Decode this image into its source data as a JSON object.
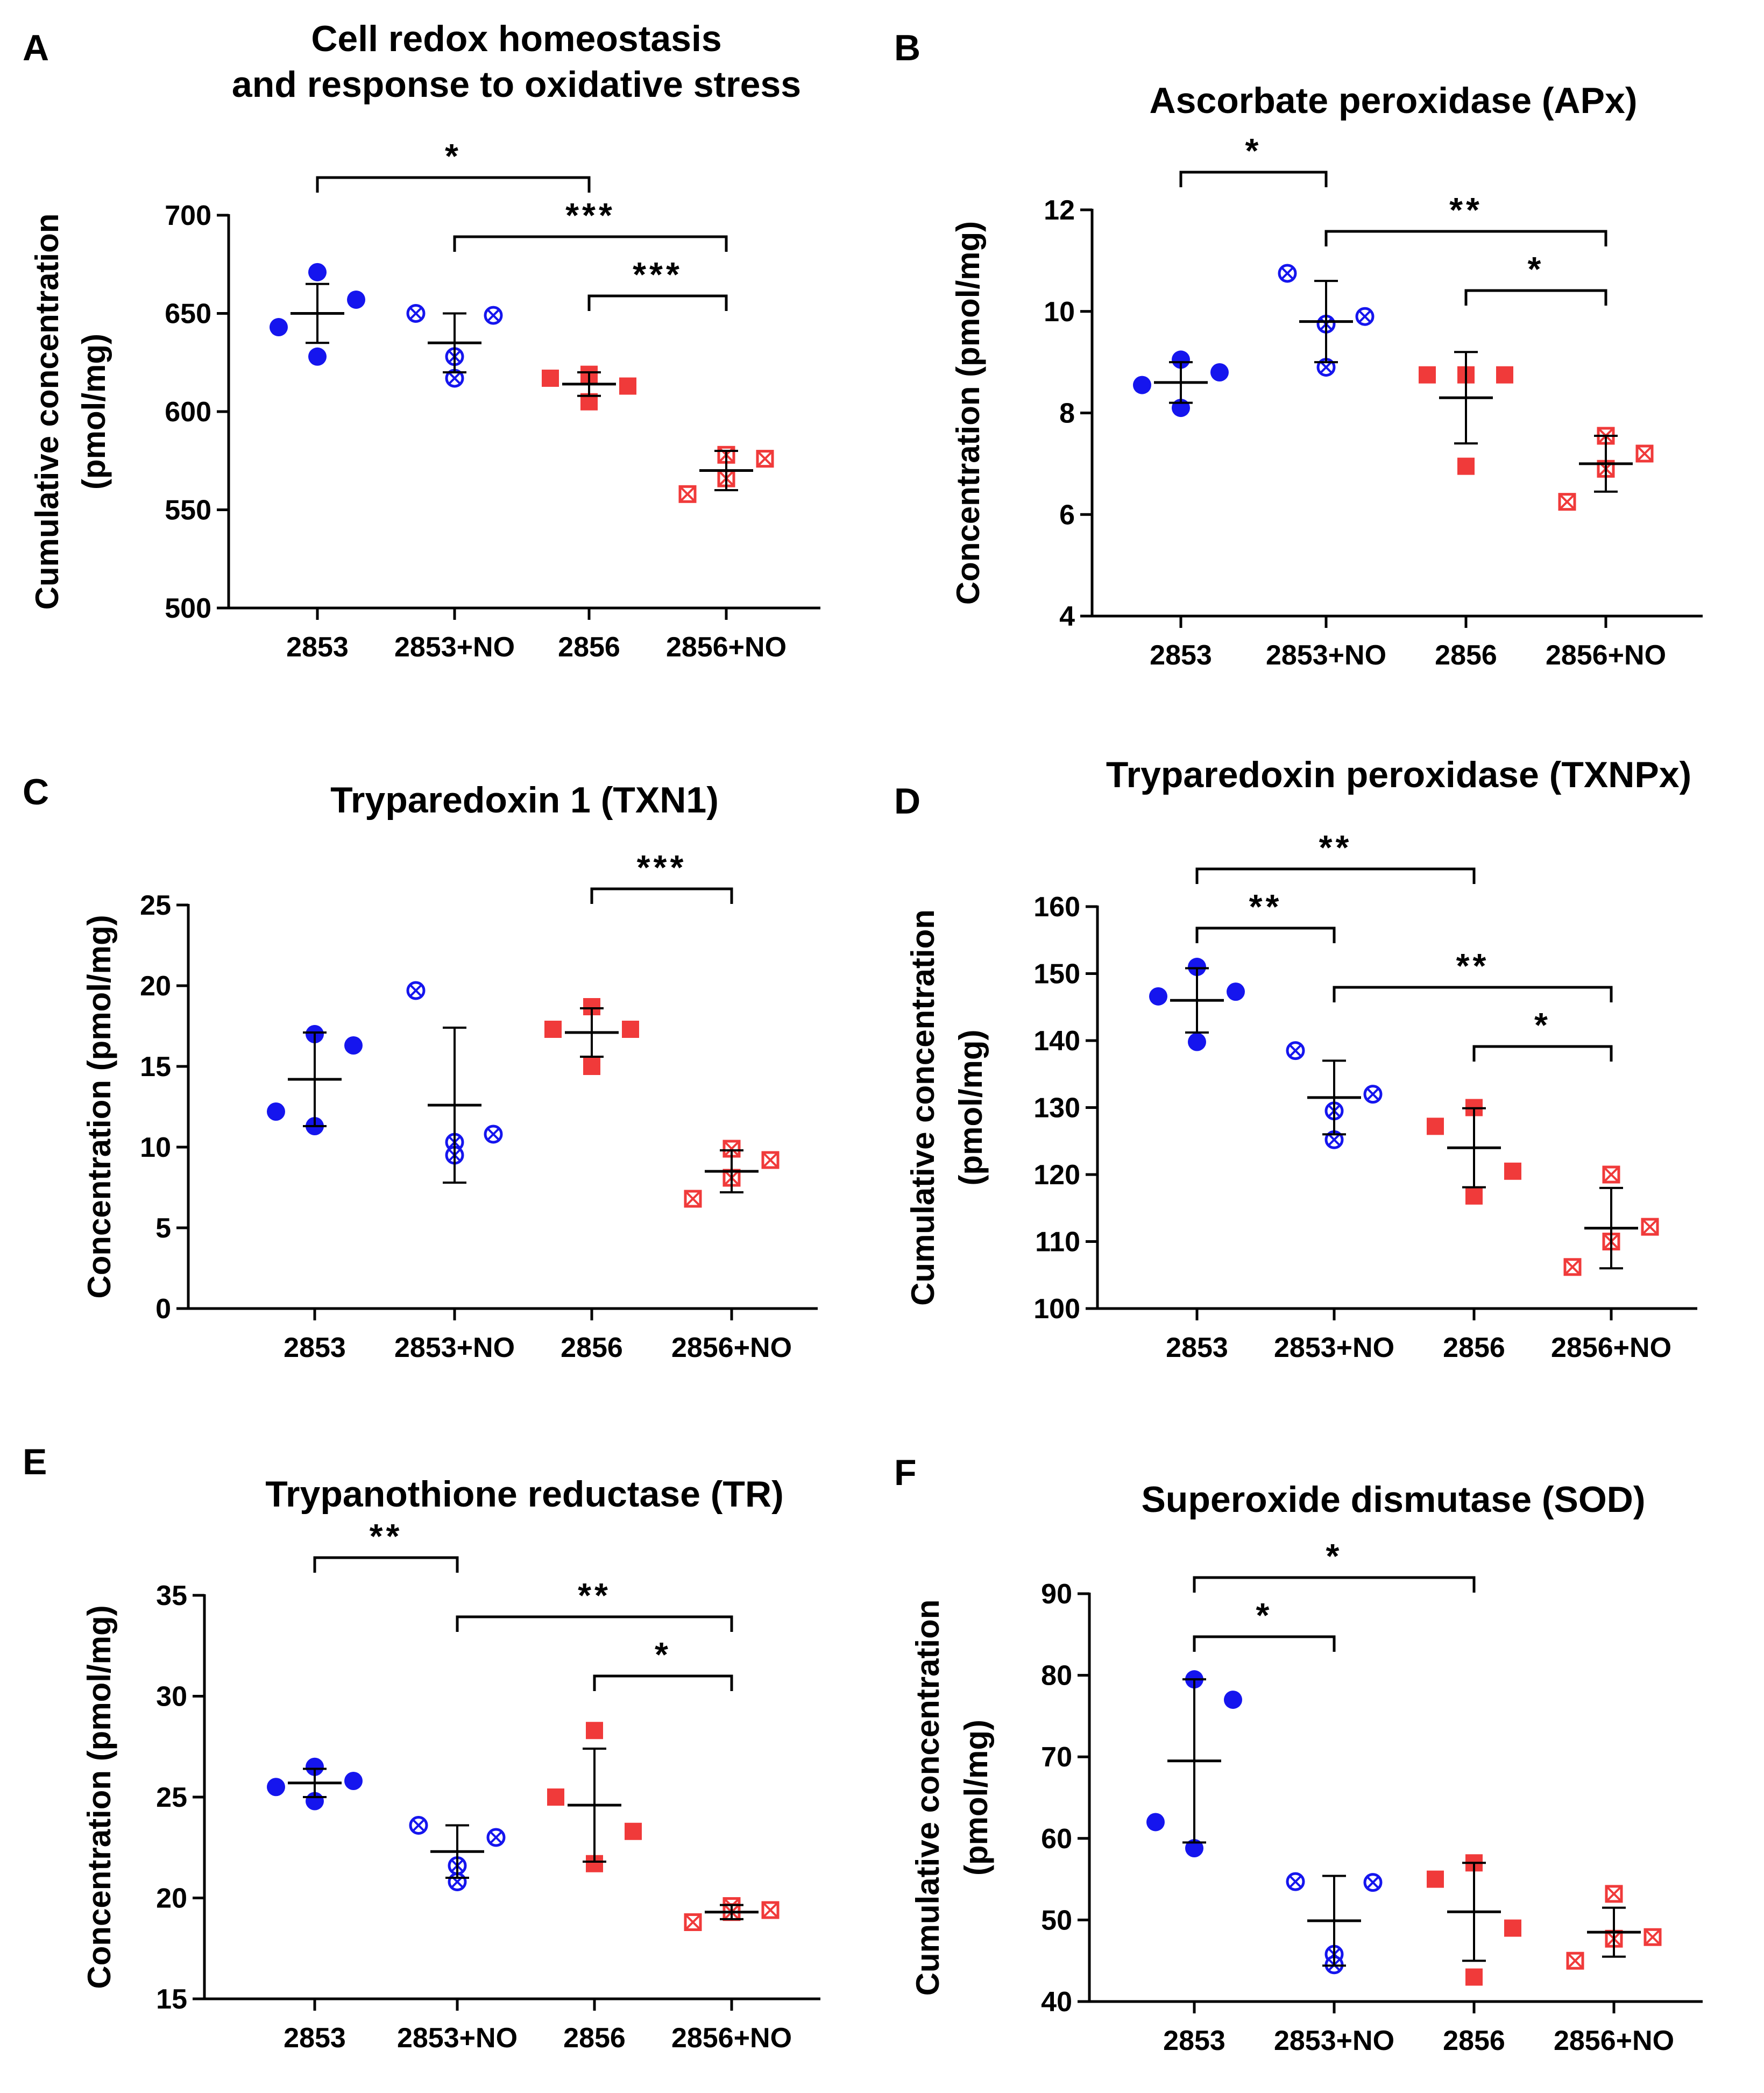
{
  "colors": {
    "blue": "#1515ee",
    "red": "#f03a3a",
    "black": "#000000"
  },
  "chart_data": [
    {
      "panel": "A",
      "type": "scatter",
      "title": [
        "Cell redox homeostasis",
        "and response to oxidative stress"
      ],
      "ylabel": [
        "Cumulative concentration",
        "(pmol/mg)"
      ],
      "ylim": [
        500,
        700
      ],
      "yticks": [
        500,
        550,
        600,
        650,
        700
      ],
      "categories": [
        "2853",
        "2853+NO",
        "2856",
        "2856+NO"
      ],
      "groups": [
        {
          "name": "2853",
          "marker": "circle",
          "color": "#1515ee",
          "points": [
            671,
            657,
            643,
            628
          ],
          "mean": 650,
          "sd": 15
        },
        {
          "name": "2853+NO",
          "marker": "circle-x",
          "color": "#1515ee",
          "points": [
            650,
            649,
            628,
            617
          ],
          "mean": 635,
          "sd": 15
        },
        {
          "name": "2856",
          "marker": "square",
          "color": "#f03a3a",
          "points": [
            619,
            617,
            613,
            605
          ],
          "mean": 614,
          "sd": 6
        },
        {
          "name": "2856+NO",
          "marker": "square-x",
          "color": "#f03a3a",
          "points": [
            578,
            576,
            566,
            558
          ],
          "mean": 570,
          "sd": 10
        }
      ],
      "brackets": [
        {
          "from": 0,
          "to": 2,
          "label": "*"
        },
        {
          "from": 1,
          "to": 3,
          "label": "***"
        },
        {
          "from": 2,
          "to": 3,
          "label": "***"
        }
      ]
    },
    {
      "panel": "B",
      "type": "scatter",
      "title": [
        "Ascorbate peroxidase (APx)"
      ],
      "ylabel": [
        "Concentration (pmol/mg)"
      ],
      "ylim": [
        4,
        12
      ],
      "yticks": [
        4,
        6,
        8,
        10,
        12
      ],
      "categories": [
        "2853",
        "2853+NO",
        "2856",
        "2856+NO"
      ],
      "groups": [
        {
          "name": "2853",
          "marker": "circle",
          "color": "#1515ee",
          "points": [
            9.05,
            8.8,
            8.55,
            8.1
          ],
          "mean": 8.6,
          "sd": 0.4
        },
        {
          "name": "2853+NO",
          "marker": "circle-x",
          "color": "#1515ee",
          "points": [
            10.75,
            9.9,
            9.75,
            8.9
          ],
          "mean": 9.8,
          "sd": 0.8
        },
        {
          "name": "2856",
          "marker": "square",
          "color": "#f03a3a",
          "points": [
            8.75,
            8.75,
            8.75,
            6.95
          ],
          "mean": 8.3,
          "sd": 0.9
        },
        {
          "name": "2856+NO",
          "marker": "square-x",
          "color": "#f03a3a",
          "points": [
            7.55,
            7.2,
            6.9,
            6.25
          ],
          "mean": 7.0,
          "sd": 0.55
        }
      ],
      "brackets": [
        {
          "from": 0,
          "to": 1,
          "label": "*"
        },
        {
          "from": 1,
          "to": 3,
          "label": "**"
        },
        {
          "from": 2,
          "to": 3,
          "label": "*"
        }
      ]
    },
    {
      "panel": "C",
      "type": "scatter",
      "title": [
        "Tryparedoxin 1 (TXN1)"
      ],
      "ylabel": [
        "Concentration (pmol/mg)"
      ],
      "ylim": [
        0,
        25
      ],
      "yticks": [
        0,
        5,
        10,
        15,
        20,
        25
      ],
      "categories": [
        "2853",
        "2853+NO",
        "2856",
        "2856+NO"
      ],
      "groups": [
        {
          "name": "2853",
          "marker": "circle",
          "color": "#1515ee",
          "points": [
            17.0,
            16.3,
            12.2,
            11.3
          ],
          "mean": 14.2,
          "sd": 2.9
        },
        {
          "name": "2853+NO",
          "marker": "circle-x",
          "color": "#1515ee",
          "points": [
            19.7,
            10.8,
            10.3,
            9.5
          ],
          "mean": 12.6,
          "sd": 4.8
        },
        {
          "name": "2856",
          "marker": "square",
          "color": "#f03a3a",
          "points": [
            18.7,
            17.3,
            17.3,
            15.0
          ],
          "mean": 17.1,
          "sd": 1.5
        },
        {
          "name": "2856+NO",
          "marker": "square-x",
          "color": "#f03a3a",
          "points": [
            9.9,
            9.2,
            8.1,
            6.8
          ],
          "mean": 8.5,
          "sd": 1.3
        }
      ],
      "brackets": [
        {
          "from": 2,
          "to": 3,
          "label": "***"
        }
      ]
    },
    {
      "panel": "D",
      "type": "scatter",
      "title": [
        "Tryparedoxin peroxidase (TXNPx)"
      ],
      "ylabel": [
        "Cumulative concentration",
        "(pmol/mg)"
      ],
      "ylim": [
        100,
        160
      ],
      "yticks": [
        100,
        110,
        120,
        130,
        140,
        150,
        160
      ],
      "categories": [
        "2853",
        "2853+NO",
        "2856",
        "2856+NO"
      ],
      "groups": [
        {
          "name": "2853",
          "marker": "circle",
          "color": "#1515ee",
          "points": [
            151,
            147.3,
            146.6,
            139.8
          ],
          "mean": 146,
          "sd": 4.8
        },
        {
          "name": "2853+NO",
          "marker": "circle-x",
          "color": "#1515ee",
          "points": [
            138.5,
            132,
            129.5,
            125.2
          ],
          "mean": 131.5,
          "sd": 5.5
        },
        {
          "name": "2856",
          "marker": "square",
          "color": "#f03a3a",
          "points": [
            130,
            127.2,
            120.5,
            116.8
          ],
          "mean": 124,
          "sd": 5.9
        },
        {
          "name": "2856+NO",
          "marker": "square-x",
          "color": "#f03a3a",
          "points": [
            120,
            112.2,
            110,
            106.2
          ],
          "mean": 112,
          "sd": 6
        }
      ],
      "brackets": [
        {
          "from": 0,
          "to": 2,
          "label": "**"
        },
        {
          "from": 0,
          "to": 1,
          "label": "**"
        },
        {
          "from": 1,
          "to": 3,
          "label": "**"
        },
        {
          "from": 2,
          "to": 3,
          "label": "*"
        }
      ]
    },
    {
      "panel": "E",
      "type": "scatter",
      "title": [
        "Trypanothione reductase (TR)"
      ],
      "ylabel": [
        "Concentration (pmol/mg)"
      ],
      "ylim": [
        15,
        35
      ],
      "yticks": [
        15,
        20,
        25,
        30,
        35
      ],
      "categories": [
        "2853",
        "2853+NO",
        "2856",
        "2856+NO"
      ],
      "groups": [
        {
          "name": "2853",
          "marker": "circle",
          "color": "#1515ee",
          "points": [
            26.5,
            25.8,
            25.5,
            24.8
          ],
          "mean": 25.7,
          "sd": 0.7
        },
        {
          "name": "2853+NO",
          "marker": "circle-x",
          "color": "#1515ee",
          "points": [
            23.6,
            23.0,
            21.6,
            20.8
          ],
          "mean": 22.3,
          "sd": 1.3
        },
        {
          "name": "2856",
          "marker": "square",
          "color": "#f03a3a",
          "points": [
            28.3,
            25.0,
            23.3,
            21.7
          ],
          "mean": 24.6,
          "sd": 2.8
        },
        {
          "name": "2856+NO",
          "marker": "square-x",
          "color": "#f03a3a",
          "points": [
            19.6,
            19.4,
            19.3,
            18.8
          ],
          "mean": 19.3,
          "sd": 0.35
        }
      ],
      "brackets": [
        {
          "from": 0,
          "to": 1,
          "label": "**"
        },
        {
          "from": 1,
          "to": 3,
          "label": "**"
        },
        {
          "from": 2,
          "to": 3,
          "label": "*"
        }
      ]
    },
    {
      "panel": "F",
      "type": "scatter",
      "title": [
        "Superoxide dismutase (SOD)"
      ],
      "ylabel": [
        "Cumulative concentration",
        "(pmol/mg)"
      ],
      "ylim": [
        40,
        90
      ],
      "yticks": [
        40,
        50,
        60,
        70,
        80,
        90
      ],
      "categories": [
        "2853",
        "2853+NO",
        "2856",
        "2856+NO"
      ],
      "groups": [
        {
          "name": "2853",
          "marker": "circle",
          "color": "#1515ee",
          "points": [
            79.5,
            77,
            62,
            58.8
          ],
          "mean": 69.5,
          "sd": 10
        },
        {
          "name": "2853+NO",
          "marker": "circle-x",
          "color": "#1515ee",
          "points": [
            54.7,
            54.6,
            45.8,
            44.5
          ],
          "mean": 49.9,
          "sd": 5.5
        },
        {
          "name": "2856",
          "marker": "square",
          "color": "#f03a3a",
          "points": [
            57,
            55,
            49,
            43
          ],
          "mean": 51,
          "sd": 6
        },
        {
          "name": "2856+NO",
          "marker": "square-x",
          "color": "#f03a3a",
          "points": [
            53.2,
            47.9,
            47.7,
            45
          ],
          "mean": 48.5,
          "sd": 3
        }
      ],
      "brackets": [
        {
          "from": 0,
          "to": 2,
          "label": "*"
        },
        {
          "from": 0,
          "to": 1,
          "label": "*"
        }
      ]
    }
  ]
}
